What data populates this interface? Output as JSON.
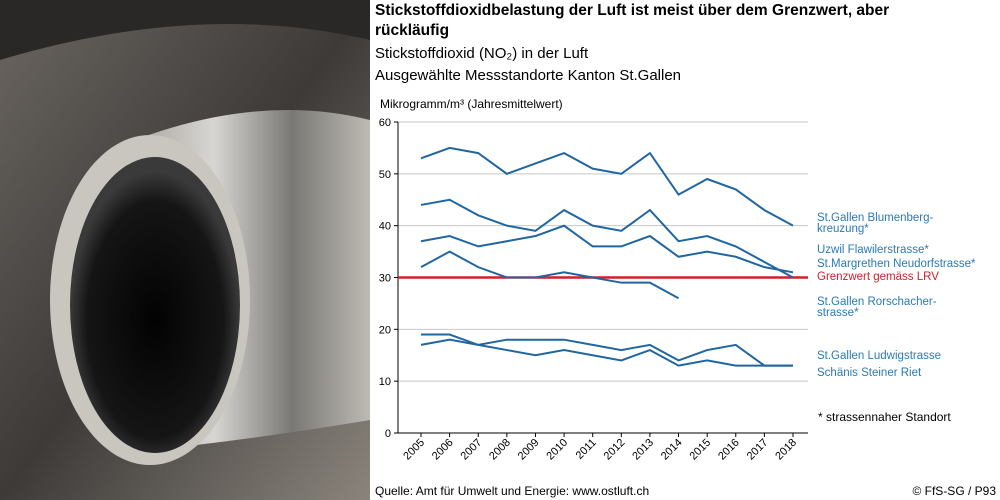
{
  "chart_data": {
    "type": "line",
    "title": "Stickstoffdioxidbelastung der Luft ist meist über dem Grenzwert, aber rückläufig",
    "subtitle": "Stickstoffdioxid (NO₂) in der Luft",
    "subtitle2": "Ausgewählte Messstandorte Kanton St.Gallen",
    "y_label": "Mikrogramm/m³ (Jahresmittelwert)",
    "footnote": "* strassennaher Standort",
    "source": "Quelle: Amt für Umwelt und Energie: www.ostluft.ch",
    "copyright": "© FfS-SG / P93",
    "categories": [
      "2005",
      "2006",
      "2007",
      "2008",
      "2009",
      "2010",
      "2011",
      "2012",
      "2013",
      "2014",
      "2015",
      "2016",
      "2017",
      "2018"
    ],
    "series": [
      {
        "name": "St.Gallen Blumenberg-kreuzung*",
        "color": "#2066a0",
        "values": [
          53,
          55,
          54,
          50,
          52,
          54,
          51,
          50,
          54,
          46,
          49,
          47,
          43,
          40
        ]
      },
      {
        "name": "Uzwil Flawilerstrasse*",
        "color": "#2066a0",
        "values": [
          44,
          45,
          42,
          40,
          39,
          43,
          40,
          39,
          43,
          37,
          38,
          36,
          33,
          30
        ]
      },
      {
        "name": "St.Margrethen Neudorfstrasse*",
        "color": "#2066a0",
        "values": [
          37,
          38,
          36,
          37,
          38,
          40,
          36,
          36,
          38,
          34,
          35,
          34,
          32,
          31
        ]
      },
      {
        "name": "St.Gallen Rorschacher-strasse*",
        "color": "#2066a0",
        "values": [
          32,
          35,
          32,
          30,
          30,
          31,
          30,
          29,
          29,
          26,
          null,
          null,
          null,
          null
        ]
      },
      {
        "name": "St.Gallen Ludwigstrasse",
        "color": "#2066a0",
        "values": [
          19,
          19,
          17,
          18,
          18,
          18,
          17,
          16,
          17,
          14,
          16,
          17,
          13,
          13
        ]
      },
      {
        "name": "Schänis Steiner Riet",
        "color": "#2066a0",
        "values": [
          17,
          18,
          17,
          16,
          15,
          16,
          15,
          14,
          16,
          13,
          14,
          13,
          13,
          13
        ]
      }
    ],
    "threshold": {
      "label": "Grenzwert gemäss LRV",
      "value": 30,
      "color": "#d0202a"
    },
    "label_color": "#2a7ab5",
    "ylim": [
      0,
      60
    ],
    "yticks": [
      0,
      10,
      20,
      30,
      40,
      50,
      60
    ],
    "grid": true
  }
}
